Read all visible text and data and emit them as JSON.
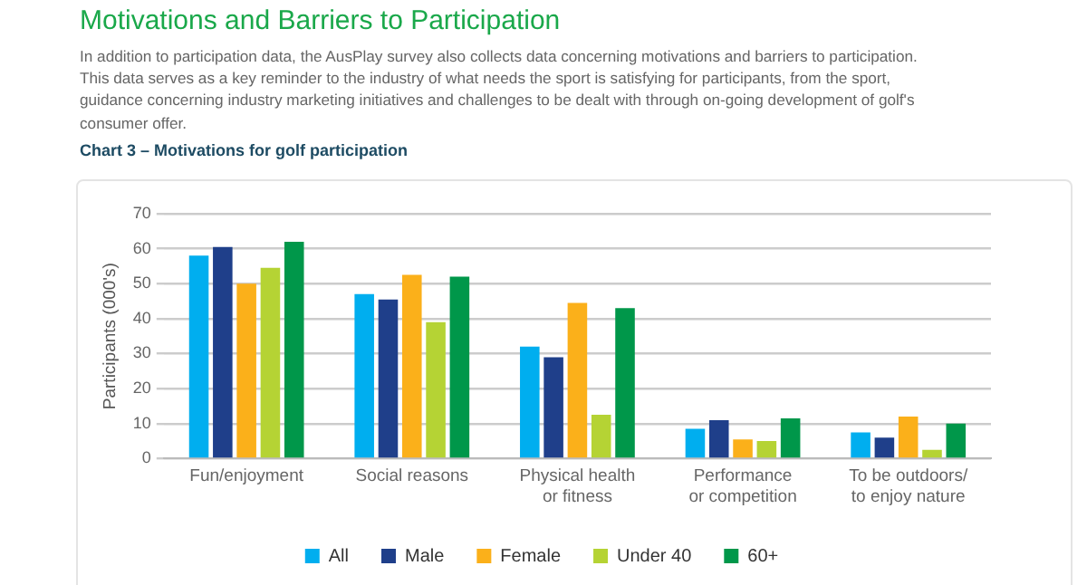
{
  "chart_data": {
    "type": "bar",
    "title": "Motivations and Barriers to Participation",
    "subtitle": "In addition to participation data, the AusPlay survey also collects data concerning motivations and barriers to participation. This data serves as a key reminder to the industry of what needs the sport is satisfying for participants, from the sport, guidance concerning industry marketing initiatives and challenges to be dealt with through on-going development of golf's consumer offer.",
    "annotations": [
      "Chart 3 – Motivations for golf participation"
    ],
    "ylabel": "Participants (000's)",
    "categories": [
      "Fun/enjoyment",
      "Social reasons",
      "Physical health\nor fitness",
      "Performance\nor competition",
      "To be outdoors/\nto enjoy nature"
    ],
    "series": [
      {
        "name": "All",
        "color": "#00aeef",
        "values": [
          58,
          47,
          32,
          8.5,
          7.5
        ]
      },
      {
        "name": "Male",
        "color": "#1f3f8a",
        "values": [
          60.5,
          45.5,
          29,
          11,
          6
        ]
      },
      {
        "name": "Female",
        "color": "#fbb01a",
        "values": [
          50,
          52.5,
          44.5,
          5.5,
          12
        ]
      },
      {
        "name": "Under 40",
        "color": "#b5d334",
        "values": [
          54.5,
          39,
          12.5,
          5,
          2.5
        ]
      },
      {
        "name": "60+",
        "color": "#00974a",
        "values": [
          62,
          52,
          43,
          11.5,
          10
        ]
      }
    ],
    "ylim": [
      0,
      70
    ],
    "yticks": [
      0,
      10,
      20,
      30,
      40,
      50,
      60,
      70
    ],
    "grid": "y",
    "legend": "bottom"
  }
}
